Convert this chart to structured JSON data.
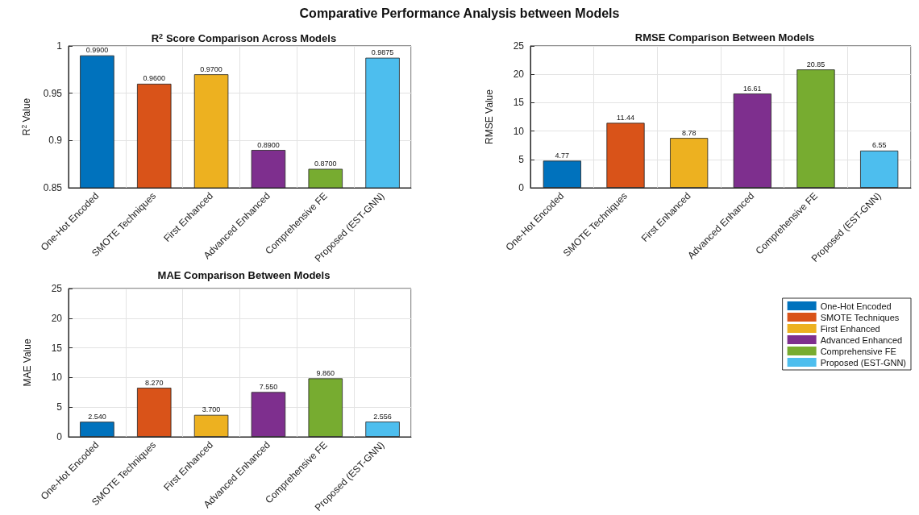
{
  "chart_data": [
    {
      "type": "bar",
      "title": "R$^{2}$ Score Comparison Across Models",
      "ylabel": "R$^{2}$ Value",
      "annotations": [
        "Comparative Performance Analysis between Models"
      ],
      "categories": [
        "One-Hot Encoded",
        "SMOTE Techniques",
        "First Enhanced",
        "Advanced Enhanced",
        "Comprehensive FE",
        "Proposed (EST-GNN)"
      ],
      "values": [
        0.99,
        0.96,
        0.97,
        0.89,
        0.87,
        0.9875
      ],
      "value_labels": [
        "0.9900",
        "0.9600",
        "0.9700",
        "0.8900",
        "0.8700",
        "0.9875"
      ],
      "colors": [
        "#0072bd",
        "#d95319",
        "#edb120",
        "#7e2f8e",
        "#77ac30",
        "#4dbeee"
      ],
      "ylim": [
        0.85,
        1
      ],
      "yticks": [
        0.85,
        0.9,
        0.95,
        {
          "value": 1,
          "label": "1"
        }
      ],
      "grid": true
    },
    {
      "type": "bar",
      "title": "RMSE Comparison Between Models",
      "ylabel": "RMSE Value",
      "categories": [
        "One-Hot Encoded",
        "SMOTE Techniques",
        "First Enhanced",
        "Advanced Enhanced",
        "Comprehensive FE",
        "Proposed (EST-GNN)"
      ],
      "values": [
        4.77,
        11.44,
        8.78,
        16.61,
        20.85,
        6.55
      ],
      "value_labels": [
        "4.77",
        "11.44",
        "8.78",
        "16.61",
        "20.85",
        "6.55"
      ],
      "colors": [
        "#0072bd",
        "#d95319",
        "#edb120",
        "#7e2f8e",
        "#77ac30",
        "#4dbeee"
      ],
      "ylim": [
        0,
        25
      ],
      "yticks": [
        0,
        5,
        10,
        15,
        20,
        25
      ],
      "grid": true
    },
    {
      "type": "bar",
      "title": "MAE Comparison Between Models",
      "ylabel": "MAE Value",
      "categories": [
        "One-Hot Encoded",
        "SMOTE Techniques",
        "First Enhanced",
        "Advanced Enhanced",
        "Comprehensive FE",
        "Proposed (EST-GNN)"
      ],
      "stacked": true,
      "series": [
        {
          "name": "One-Hot Encoded",
          "color": "#0072bd",
          "values": [
            2.54,
            null,
            null,
            null,
            null,
            null
          ],
          "value_labels": [
            "2.540",
            null,
            null,
            null,
            null,
            null
          ]
        },
        {
          "name": "SMOTE Techniques",
          "color": "#d95319",
          "values": [
            null,
            8.27,
            null,
            null,
            null,
            null
          ],
          "value_labels": [
            null,
            "8.270",
            null,
            null,
            null,
            null
          ]
        },
        {
          "name": "First Enhanced",
          "color": "#edb120",
          "values": [
            null,
            null,
            3.7,
            null,
            null,
            null
          ],
          "value_labels": [
            null,
            null,
            "3.700",
            null,
            null,
            null
          ]
        },
        {
          "name": "Advanced Enhanced",
          "color": "#7e2f8e",
          "values": [
            null,
            null,
            null,
            7.55,
            null,
            null
          ],
          "value_labels": [
            null,
            null,
            null,
            "7.550",
            null,
            null
          ]
        },
        {
          "name": "Comprehensive FE",
          "color": "#77ac30",
          "values": [
            null,
            null,
            null,
            null,
            9.86,
            null
          ],
          "value_labels": [
            null,
            null,
            null,
            null,
            "9.860",
            null
          ]
        },
        {
          "name": "Proposed (EST-GNN)",
          "color": "#4dbeee",
          "values": [
            null,
            null,
            null,
            null,
            null,
            2.556
          ],
          "value_labels": [
            null,
            null,
            null,
            null,
            null,
            "2.556"
          ]
        }
      ],
      "ylim": [
        0,
        25
      ],
      "yticks": [
        0,
        5,
        10,
        15,
        20,
        25
      ],
      "grid": true,
      "legend": "right"
    }
  ]
}
